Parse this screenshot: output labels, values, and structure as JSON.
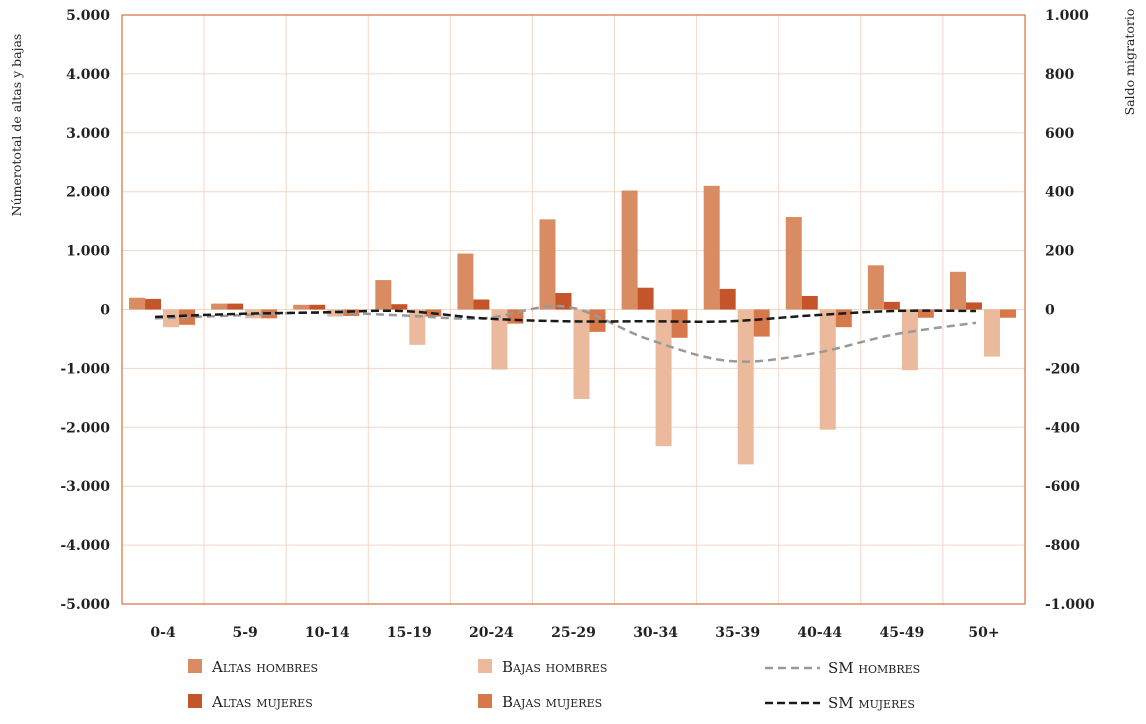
{
  "chart_data": {
    "type": "bar",
    "categories": [
      "0-4",
      "5-9",
      "10-14",
      "15-19",
      "20-24",
      "25-29",
      "30-34",
      "35-39",
      "40-44",
      "45-49",
      "50+"
    ],
    "ylabel": "Númerototal de altas y bajas",
    "y2label": "Saldo migratorio",
    "ylim": [
      -5000,
      5000
    ],
    "y2lim": [
      -1000,
      1000
    ],
    "yticks": [
      "5.000",
      "4.000",
      "3.000",
      "2.000",
      "1.000",
      "0",
      "-1.000",
      "-2.000",
      "-3.000",
      "-4.000",
      "-5.000"
    ],
    "y2ticks": [
      "1.000",
      "800",
      "600",
      "400",
      "200",
      "0",
      "-200",
      "-400",
      "-600",
      "-800",
      "-1.000"
    ],
    "grid": true,
    "legend_position": "bottom",
    "series": [
      {
        "name": "Altas hombres",
        "kind": "bar",
        "axis": "left",
        "color": "#d98c62",
        "values": [
          200,
          100,
          80,
          500,
          950,
          1530,
          2020,
          2100,
          1570,
          750,
          640
        ]
      },
      {
        "name": "Altas mujeres",
        "kind": "bar",
        "axis": "left",
        "color": "#c4552a",
        "values": [
          180,
          100,
          80,
          90,
          170,
          280,
          370,
          350,
          230,
          130,
          120
        ]
      },
      {
        "name": "Bajas hombres",
        "kind": "bar",
        "axis": "left",
        "color": "#ebb99c",
        "values": [
          -300,
          -150,
          -120,
          -600,
          -1020,
          -1520,
          -2320,
          -2630,
          -2040,
          -1030,
          -800
        ]
      },
      {
        "name": "Bajas mujeres",
        "kind": "bar",
        "axis": "left",
        "color": "#d7784a",
        "values": [
          -260,
          -150,
          -110,
          -120,
          -240,
          -380,
          -480,
          -460,
          -300,
          -140,
          -140
        ]
      },
      {
        "name": "SM hombres",
        "kind": "line",
        "axis": "right",
        "color": "#999999",
        "dash": "8,5",
        "values": [
          -30,
          -20,
          -10,
          -20,
          -30,
          10,
          -100,
          -175,
          -150,
          -85,
          -45
        ]
      },
      {
        "name": "SM mujeres",
        "kind": "line",
        "axis": "right",
        "color": "#1a1a1a",
        "dash": "8,4",
        "values": [
          -25,
          -15,
          -10,
          -5,
          -30,
          -40,
          -40,
          -40,
          -20,
          -5,
          -5
        ]
      }
    ]
  },
  "legend": {
    "altas_hombres": "Altas hombres",
    "bajas_hombres": "Bajas hombres",
    "sm_hombres": "SM hombres",
    "altas_mujeres": "Altas mujeres",
    "bajas_mujeres": "Bajas mujeres",
    "sm_mujeres": "SM mujeres"
  }
}
